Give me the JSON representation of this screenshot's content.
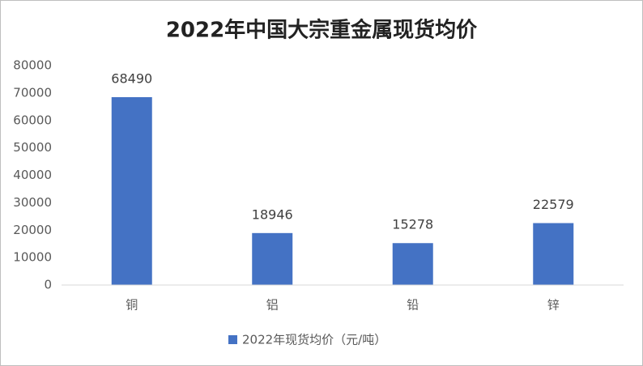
{
  "chart_data": {
    "type": "bar",
    "title": "2022年中国大宗重金属现货均价",
    "categories": [
      "铜",
      "铝",
      "铅",
      "锌"
    ],
    "series": [
      {
        "name": "2022年现货均价（元/吨）",
        "color": "#4472c4",
        "values": [
          68490,
          18946,
          15278,
          22579
        ]
      }
    ],
    "ylim": [
      0,
      80000
    ],
    "yticks": [
      0,
      10000,
      20000,
      30000,
      40000,
      50000,
      60000,
      70000,
      80000
    ],
    "grid": false,
    "legend": "bottom"
  }
}
